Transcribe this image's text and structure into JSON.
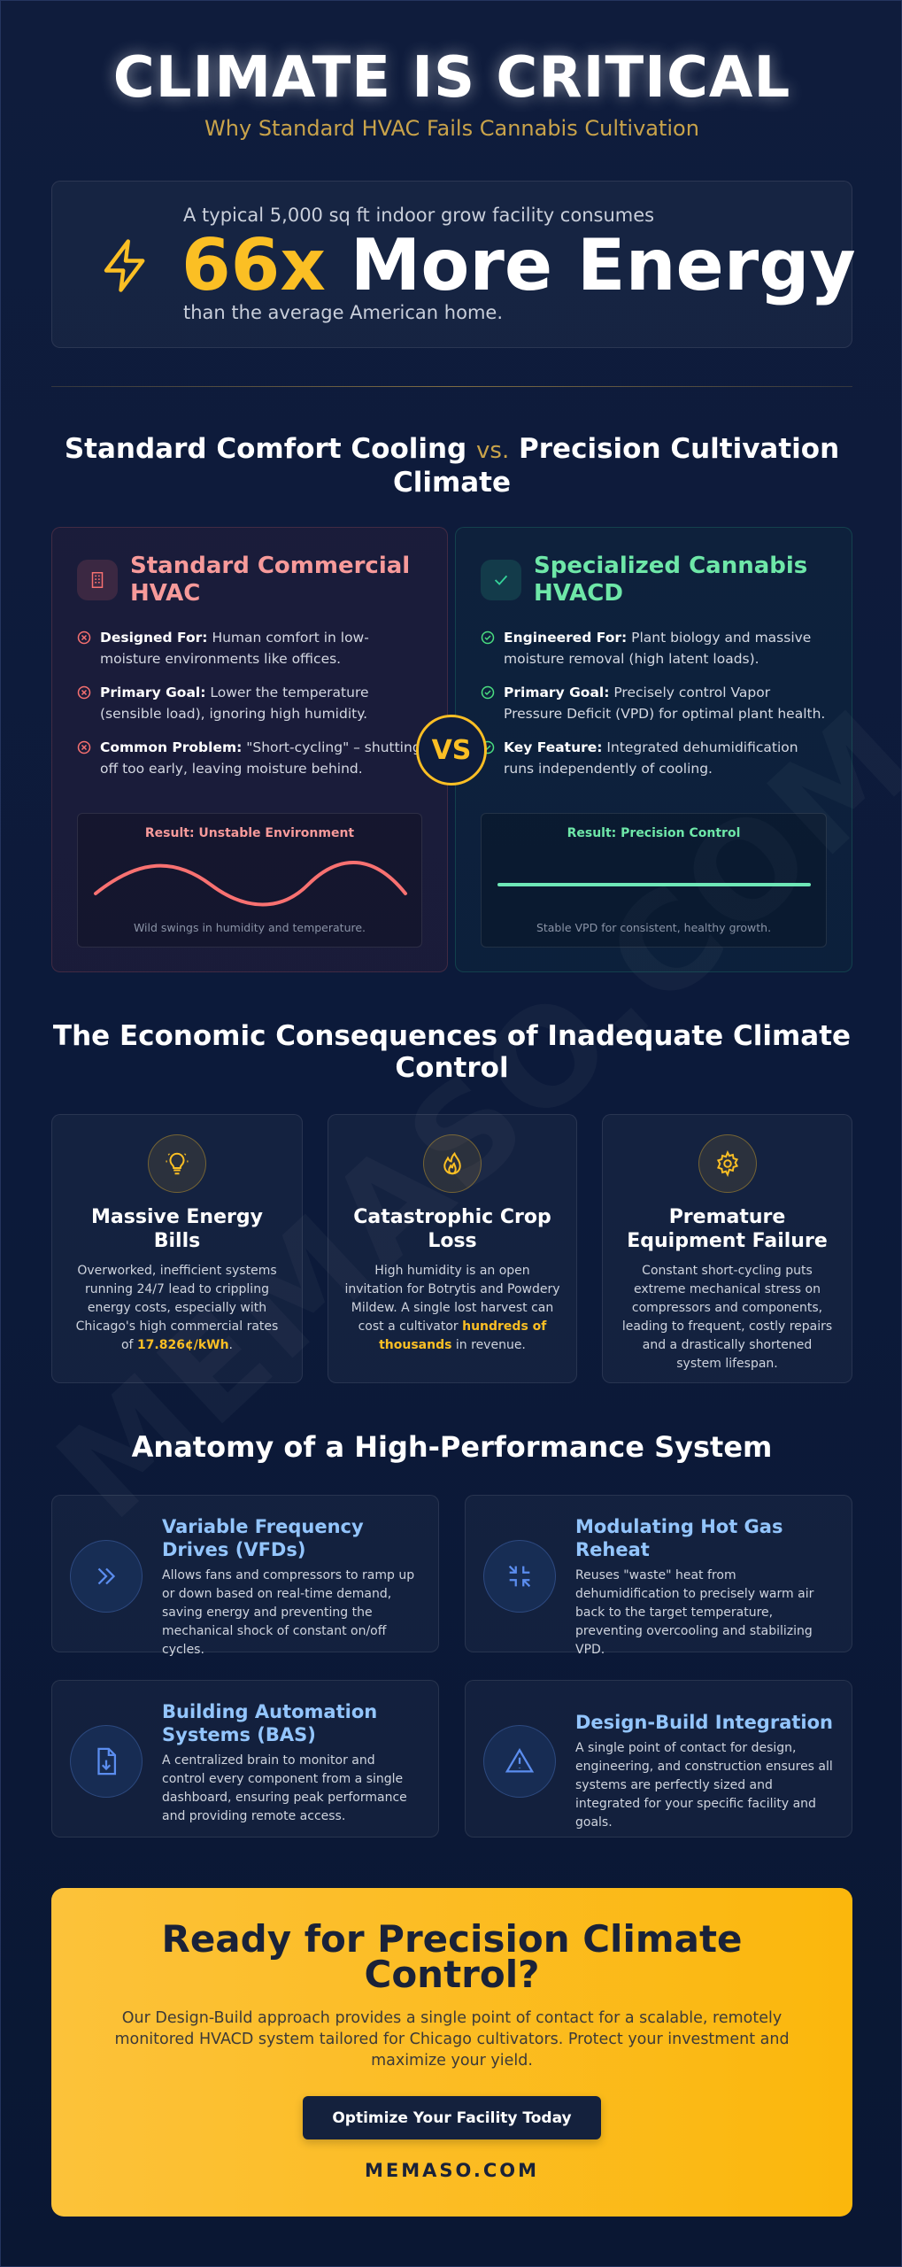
{
  "header": {
    "title": "CLIMATE IS CRITICAL",
    "subtitle": "Why Standard HVAC Fails Cannabis Cultivation"
  },
  "stat": {
    "intro": "A typical 5,000 sq ft indoor grow facility consumes",
    "value": "66x",
    "label": "More Energy",
    "outro": "than the average American home."
  },
  "comparison": {
    "heading_left": "Standard Comfort Cooling",
    "vs_small": "vs.",
    "heading_right": "Precision Cultivation Climate",
    "vs_badge": "VS",
    "cards": [
      {
        "title": "Standard Commercial HVAC",
        "items": [
          {
            "label": "Designed For:",
            "text": "Human comfort in low-moisture environments like offices."
          },
          {
            "label": "Primary Goal:",
            "text": "Lower the temperature (sensible load), ignoring high humidity."
          },
          {
            "label": "Common Problem:",
            "text": "\"Short-cycling\" – shutting off too early, leaving moisture behind."
          }
        ],
        "result_title": "Result: Unstable Environment",
        "result_caption": "Wild swings in humidity and temperature."
      },
      {
        "title": "Specialized Cannabis HVACD",
        "items": [
          {
            "label": "Engineered For:",
            "text": "Plant biology and massive moisture removal (high latent loads)."
          },
          {
            "label": "Primary Goal:",
            "text": "Precisely control Vapor Pressure Deficit (VPD) for optimal plant health."
          },
          {
            "label": "Key Feature:",
            "text": "Integrated dehumidification runs independently of cooling."
          }
        ],
        "result_title": "Result: Precision Control",
        "result_caption": "Stable VPD for consistent, healthy growth."
      }
    ]
  },
  "economics": {
    "heading": "The Economic Consequences of Inadequate Climate Control",
    "cards": [
      {
        "title": "Massive Energy Bills",
        "text": "Overworked, inefficient systems running 24/7 lead to crippling energy costs, especially with Chicago's high commercial rates of ",
        "highlight": "17.826¢/kWh",
        "text_after": "."
      },
      {
        "title": "Catastrophic Crop Loss",
        "text": "High humidity is an open invitation for Botrytis and Powdery Mildew. A single lost harvest can cost a cultivator ",
        "highlight": "hundreds of thousands",
        "text_after": " in revenue."
      },
      {
        "title": "Premature Equipment Failure",
        "text": "Constant short-cycling puts extreme mechanical stress on compressors and components, leading to frequent, costly repairs and a drastically shortened system lifespan."
      }
    ]
  },
  "anatomy": {
    "heading": "Anatomy of a High-Performance System",
    "items": [
      {
        "title": "Variable Frequency Drives (VFDs)",
        "text": "Allows fans and compressors to ramp up or down based on real-time demand, saving energy and preventing the mechanical shock of constant on/off cycles."
      },
      {
        "title": "Modulating Hot Gas Reheat",
        "text": "Reuses \"waste\" heat from dehumidification to precisely warm air back to the target temperature, preventing overcooling and stabilizing VPD."
      },
      {
        "title": "Building Automation Systems (BAS)",
        "text": "A centralized brain to monitor and control every component from a single dashboard, ensuring peak performance and providing remote access."
      },
      {
        "title": "Design-Build Integration",
        "text": "A single point of contact for design, engineering, and construction ensures all systems are perfectly sized and integrated for your specific facility and goals."
      }
    ]
  },
  "cta": {
    "heading": "Ready for Precision Climate Control?",
    "text": "Our Design-Build approach provides a single point of contact for a scalable, remotely monitored HVACD system tailored for Chicago cultivators. Protect your investment and maximize your yield.",
    "button": "Optimize Your Facility Today",
    "site": "MEMASO.COM"
  },
  "watermark": "MEMASO.COM"
}
